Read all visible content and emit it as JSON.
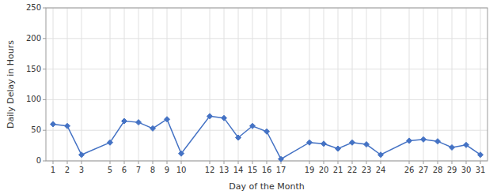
{
  "chart_data": {
    "type": "line",
    "x": [
      1,
      2,
      3,
      5,
      6,
      7,
      8,
      9,
      10,
      12,
      13,
      14,
      15,
      16,
      17,
      19,
      20,
      21,
      22,
      23,
      24,
      26,
      27,
      28,
      29,
      30,
      31
    ],
    "values": [
      60,
      57,
      10,
      30,
      65,
      63,
      53,
      68,
      12,
      73,
      70,
      38,
      57,
      48,
      3,
      30,
      28,
      20,
      30,
      27,
      10,
      33,
      35,
      32,
      22,
      26,
      10
    ],
    "color": "#4472C4",
    "marker": "diamond",
    "xlabel": "Day of the Month",
    "ylabel": "Daily Delay in Hours",
    "xlim": [
      0.5,
      31.5
    ],
    "ylim": [
      0,
      250
    ],
    "xticks": [
      1,
      2,
      3,
      5,
      6,
      7,
      8,
      9,
      10,
      12,
      13,
      14,
      15,
      16,
      17,
      19,
      20,
      21,
      22,
      23,
      24,
      26,
      27,
      28,
      29,
      30,
      31
    ],
    "yticks": [
      0,
      50,
      100,
      150,
      200,
      250
    ],
    "grid": true
  }
}
